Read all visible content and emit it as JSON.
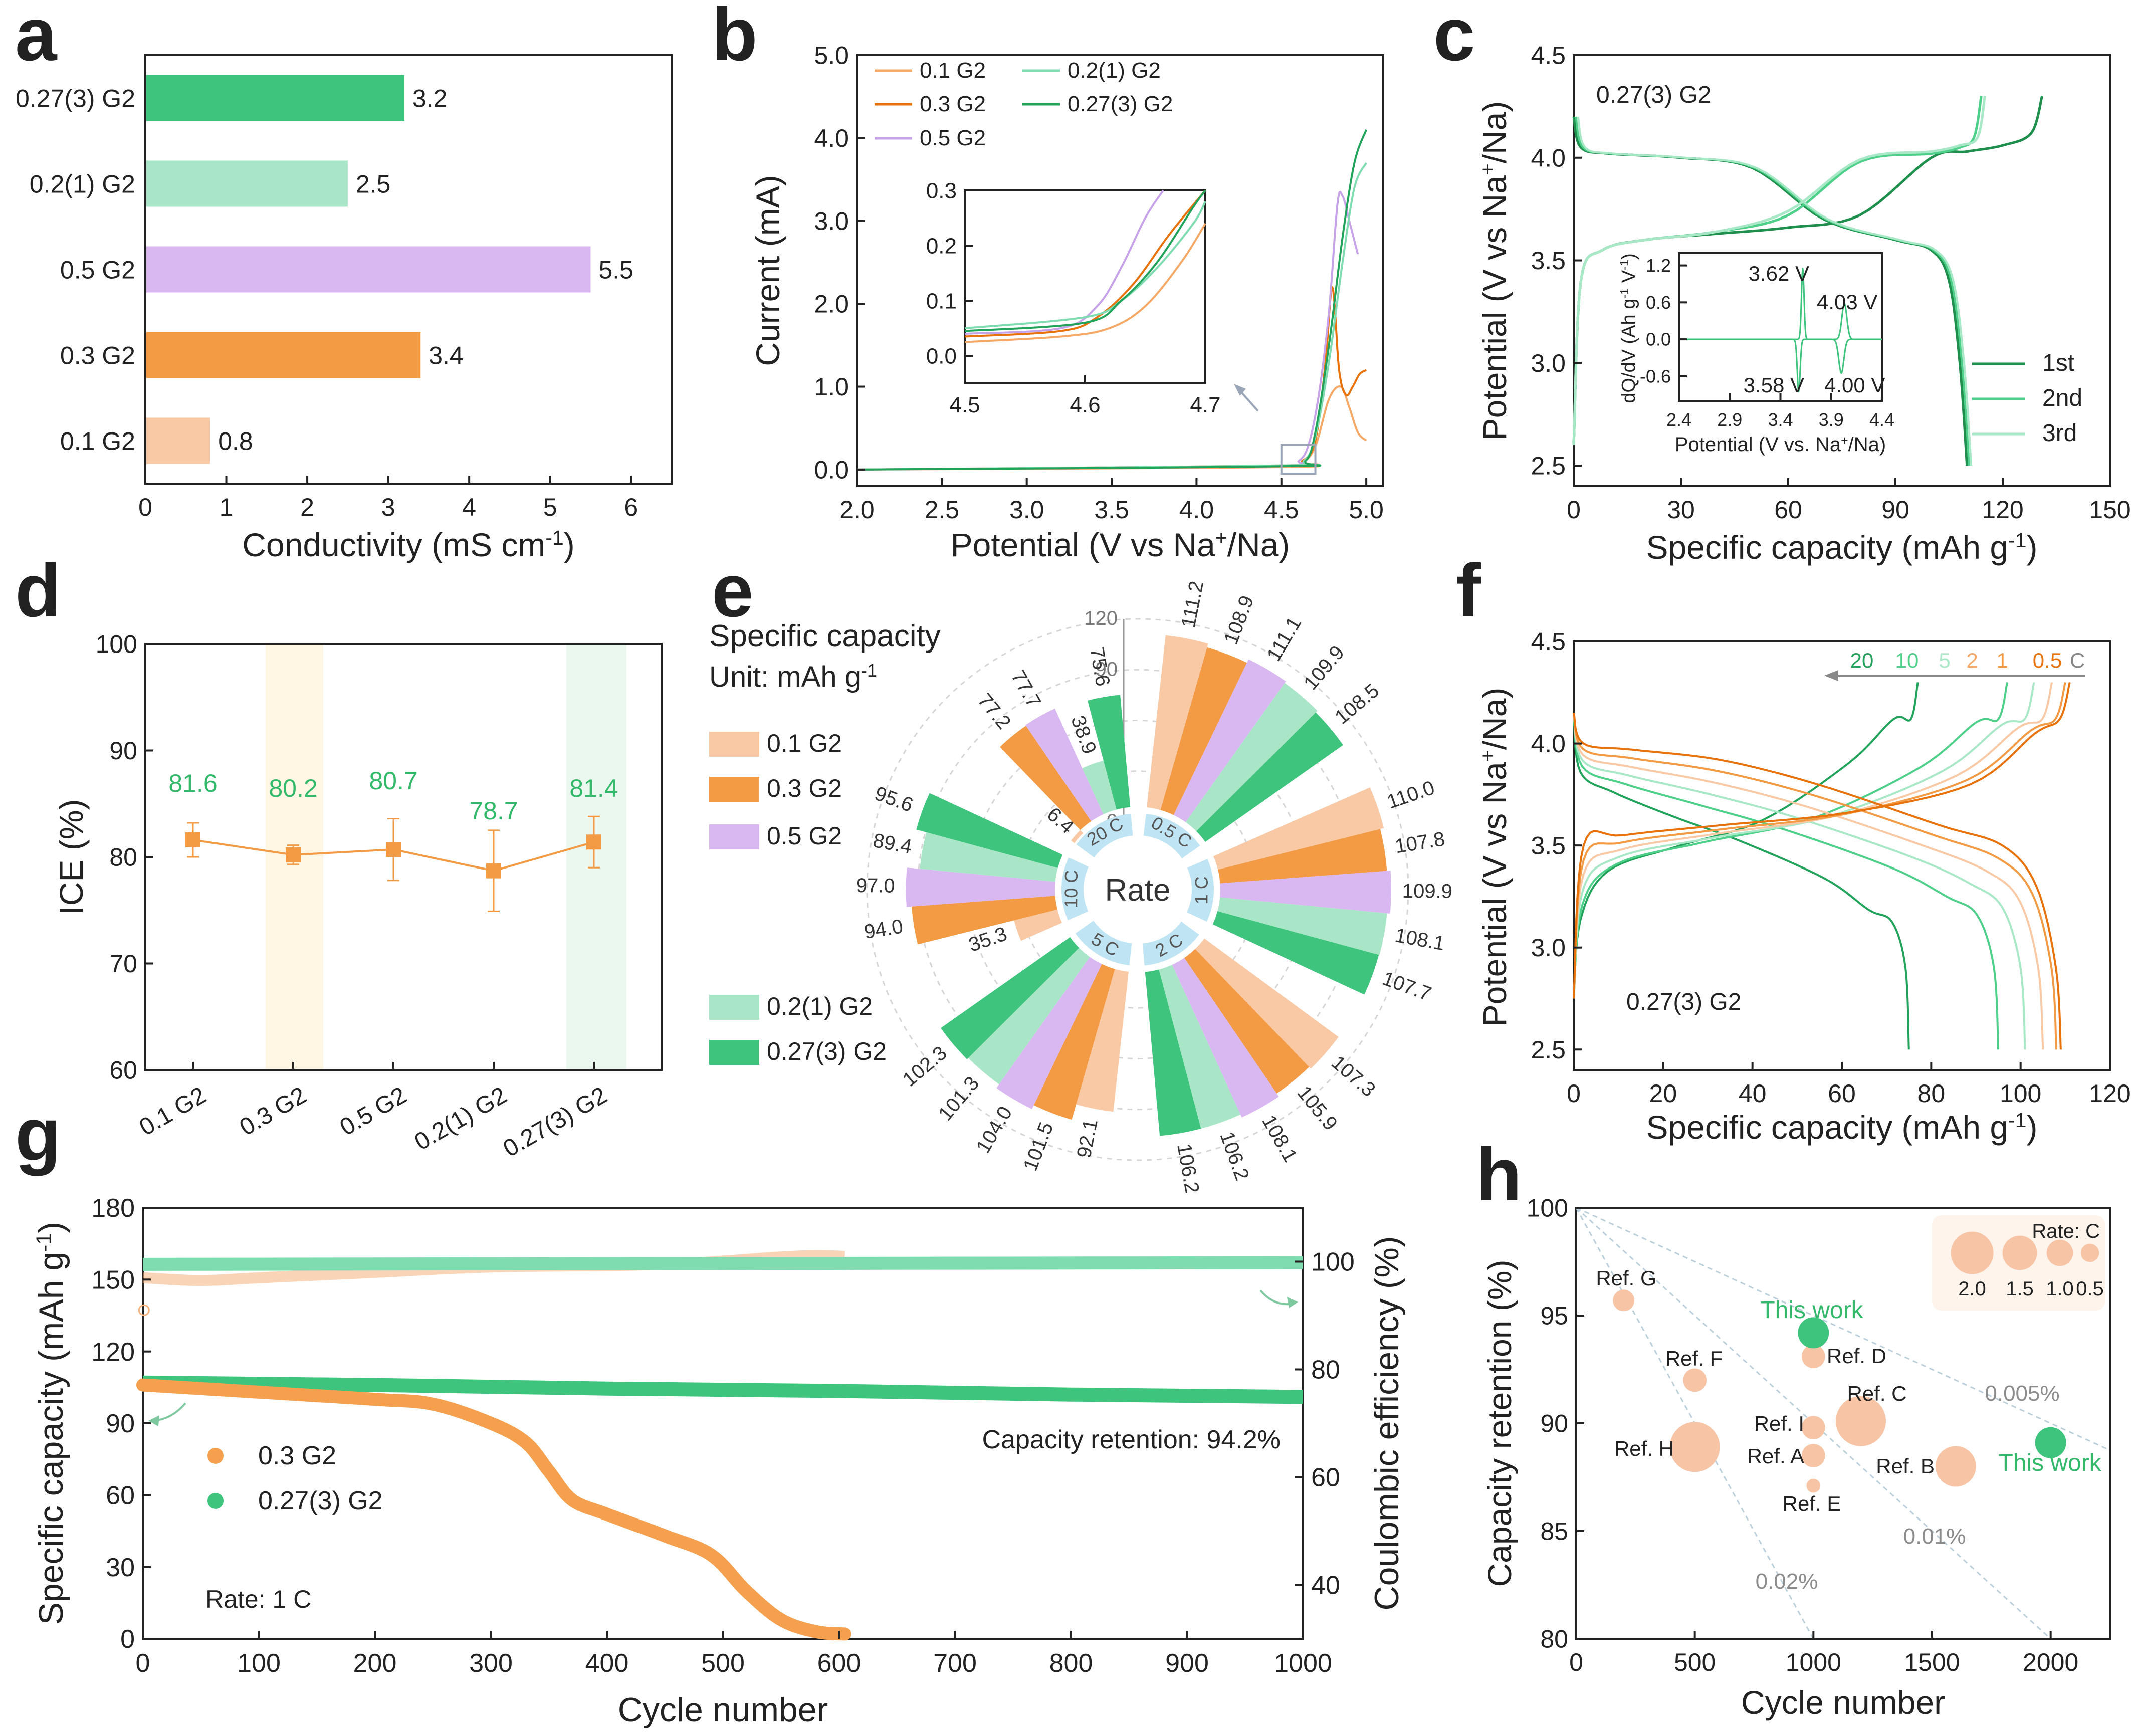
{
  "colors": {
    "c01": "#f9c9a6",
    "c03": "#f39a44",
    "c05": "#d9b8f2",
    "c021": "#a9e6c8",
    "c0273": "#3ec47d",
    "b01": "#f6a867",
    "b03": "#e8720c",
    "b05": "#c6a2e8",
    "b021": "#7fdcb0",
    "b0273": "#22a35b",
    "green_text": "#33b96a",
    "axis": "#222222",
    "light_blue": "#bfe4f3",
    "gray": "#8c8c8c"
  },
  "panels": {
    "a": {
      "letter": "a",
      "chart_data": {
        "type": "bar",
        "orientation": "horizontal",
        "categories": [
          "0.27(3) G2",
          "0.2(1) G2",
          "0.5 G2",
          "0.3 G2",
          "0.1 G2"
        ],
        "values": [
          3.2,
          2.5,
          5.5,
          3.4,
          0.8
        ],
        "value_labels": [
          "3.2",
          "2.5",
          "5.5",
          "3.4",
          "0.8"
        ],
        "xlabel": "Conductivity (mS cm",
        "xlabel_sup": "-1",
        "xlabel_end": ")",
        "xlim": [
          0,
          6.5
        ],
        "xticks": [
          "0",
          "1",
          "2",
          "3",
          "4",
          "5",
          "6"
        ]
      }
    },
    "b": {
      "letter": "b",
      "chart_data": {
        "type": "line",
        "xlabel": "Potential (V vs Na",
        "xlabel_sup": "+",
        "xlabel_end": "/Na)",
        "ylabel": "Current (mA)",
        "xlim": [
          2.0,
          5.1
        ],
        "ylim": [
          -0.2,
          5.0
        ],
        "xticks": [
          "2.0",
          "2.5",
          "3.0",
          "3.5",
          "4.0",
          "4.5",
          "5.0"
        ],
        "yticks": [
          "0.0",
          "1.0",
          "2.0",
          "3.0",
          "4.0",
          "5.0"
        ],
        "legend": [
          "0.1 G2",
          "0.2(1) G2",
          "0.3 G2",
          "0.27(3) G2",
          "0.5 G2"
        ],
        "series": [
          {
            "name": "0.1 G2",
            "x": [
              2.0,
              4.5,
              4.62,
              4.7,
              4.78,
              4.85,
              4.9,
              4.95,
              5.0
            ],
            "y": [
              0.0,
              0.03,
              0.08,
              0.28,
              0.85,
              1.0,
              0.75,
              0.45,
              0.35
            ]
          },
          {
            "name": "0.3 G2",
            "x": [
              2.0,
              4.5,
              4.62,
              4.7,
              4.76,
              4.8,
              4.84,
              4.88,
              4.92,
              4.96,
              5.0
            ],
            "y": [
              0.0,
              0.05,
              0.1,
              0.35,
              1.3,
              2.2,
              1.2,
              0.9,
              1.0,
              1.15,
              1.2
            ]
          },
          {
            "name": "0.5 G2",
            "x": [
              2.0,
              4.5,
              4.6,
              4.66,
              4.72,
              4.78,
              4.83,
              4.86,
              4.9,
              4.95
            ],
            "y": [
              0.0,
              0.04,
              0.1,
              0.3,
              0.9,
              1.9,
              3.2,
              3.3,
              3.0,
              2.6
            ]
          },
          {
            "name": "0.2(1) G2",
            "x": [
              2.0,
              4.5,
              4.63,
              4.7,
              4.78,
              4.86,
              4.93,
              5.0
            ],
            "y": [
              0.0,
              0.05,
              0.1,
              0.4,
              1.3,
              2.5,
              3.4,
              3.7
            ]
          },
          {
            "name": "0.27(3) G2",
            "x": [
              2.0,
              4.5,
              4.64,
              4.7,
              4.78,
              4.86,
              4.93,
              5.0
            ],
            "y": [
              0.0,
              0.04,
              0.1,
              0.45,
              1.5,
              2.8,
              3.7,
              4.1
            ]
          }
        ],
        "inset": {
          "xlim": [
            4.5,
            4.7
          ],
          "ylim": [
            -0.05,
            0.3
          ],
          "xticks": [
            "4.5",
            "4.6",
            "4.7"
          ],
          "yticks": [
            "0.0",
            "0.1",
            "0.2",
            "0.3"
          ],
          "series": [
            {
              "name": "0.1 G2",
              "x": [
                4.5,
                4.58,
                4.62,
                4.65,
                4.68,
                4.7
              ],
              "y": [
                0.025,
                0.035,
                0.05,
                0.09,
                0.17,
                0.24
              ]
            },
            {
              "name": "0.3 G2",
              "x": [
                4.5,
                4.58,
                4.61,
                4.64,
                4.67,
                4.7
              ],
              "y": [
                0.035,
                0.045,
                0.07,
                0.13,
                0.22,
                0.3
              ]
            },
            {
              "name": "0.5 G2",
              "x": [
                4.5,
                4.58,
                4.61,
                4.63,
                4.65,
                4.665
              ],
              "y": [
                0.04,
                0.05,
                0.09,
                0.16,
                0.25,
                0.3
              ]
            },
            {
              "name": "0.2(1) G2",
              "x": [
                4.5,
                4.6,
                4.63,
                4.66,
                4.69,
                4.7
              ],
              "y": [
                0.05,
                0.07,
                0.1,
                0.16,
                0.24,
                0.28
              ]
            },
            {
              "name": "0.27(3) G2",
              "x": [
                4.5,
                4.6,
                4.63,
                4.66,
                4.69,
                4.7
              ],
              "y": [
                0.045,
                0.06,
                0.1,
                0.17,
                0.27,
                0.3
              ]
            }
          ]
        }
      }
    },
    "c": {
      "letter": "c",
      "chart_data": {
        "type": "line",
        "annotation": "0.27(3) G2",
        "xlabel": "Specific capacity (mAh g",
        "xlabel_sup": "-1",
        "xlabel_end": ")",
        "ylabel": "Potential (V vs Na",
        "ylabel_sup": "+",
        "ylabel_end": "/Na)",
        "xlim": [
          0,
          150
        ],
        "ylim": [
          2.4,
          4.5
        ],
        "xticks": [
          "0",
          "30",
          "60",
          "90",
          "120",
          "150"
        ],
        "yticks": [
          "2.5",
          "3.0",
          "3.5",
          "4.0",
          "4.5"
        ],
        "legend": [
          "1st",
          "2nd",
          "3rd"
        ],
        "series": [
          {
            "name": "1st charge",
            "x": [
              0,
              2,
              8,
              20,
              40,
              60,
              80,
              100,
              110,
              120,
              128,
              131
            ],
            "y": [
              2.6,
              3.4,
              3.55,
              3.6,
              3.63,
              3.66,
              3.72,
              4.0,
              4.03,
              4.06,
              4.12,
              4.3
            ]
          },
          {
            "name": "1st discharge",
            "x": [
              0,
              2,
              10,
              30,
              50,
              70,
              90,
              100,
              105,
              108,
              110
            ],
            "y": [
              4.2,
              4.05,
              4.02,
              4.0,
              3.95,
              3.7,
              3.6,
              3.55,
              3.4,
              3.0,
              2.5
            ]
          },
          {
            "name": "2nd",
            "x": [
              0,
              2,
              8,
              20,
              40,
              60,
              80,
              100,
              108,
              112,
              114
            ],
            "y": [
              2.6,
              3.4,
              3.55,
              3.6,
              3.64,
              3.72,
              3.98,
              4.02,
              4.05,
              4.1,
              4.3
            ]
          },
          {
            "name": "3rd",
            "x": [
              0,
              2,
              8,
              20,
              40,
              60,
              80,
              100,
              108,
              113,
              115
            ],
            "y": [
              2.6,
              3.4,
              3.55,
              3.6,
              3.64,
              3.74,
              3.99,
              4.03,
              4.06,
              4.1,
              4.3
            ]
          }
        ],
        "inset": {
          "xlabel": "Potential (V vs. Na",
          "xlabel_sup": "+",
          "xlabel_end": "/Na)",
          "ylabel": "dQ/dV (Ah g",
          "ylabel_sup": "-1",
          "ylabel_mid": " V",
          "ylabel_sup2": "-1",
          "ylabel_end": ")",
          "xticks": [
            "2.4",
            "2.9",
            "3.4",
            "3.9",
            "4.4"
          ],
          "yticks": [
            "1.2",
            "0.6",
            "0.0",
            "-0.6"
          ],
          "xlim": [
            2.4,
            4.4
          ],
          "ylim": [
            -1.0,
            1.4
          ],
          "peak_labels": [
            "3.62 V",
            "4.03 V",
            "3.58 V",
            "4.00 V"
          ]
        }
      }
    },
    "d": {
      "letter": "d",
      "chart_data": {
        "type": "scatter",
        "categories": [
          "0.1 G2",
          "0.3 G2",
          "0.5 G2",
          "0.2(1) G2",
          "0.27(3) G2"
        ],
        "values": [
          81.6,
          80.2,
          80.7,
          78.7,
          81.4
        ],
        "value_labels": [
          "81.6",
          "80.2",
          "80.7",
          "78.7",
          "81.4"
        ],
        "errors": [
          1.6,
          0.9,
          2.9,
          3.8,
          2.4
        ],
        "ylabel": "ICE (%)",
        "ylim": [
          60,
          100
        ],
        "yticks": [
          "60",
          "70",
          "80",
          "90",
          "100"
        ]
      }
    },
    "e": {
      "letter": "e",
      "title_line1": "Specific capacity",
      "title_line2": "Unit: mAh g",
      "title_sup": "-1",
      "center_label": "Rate",
      "chart_data": {
        "type": "bar",
        "polar": true,
        "rates": [
          "0.5 C",
          "1 C",
          "2 C",
          "5 C",
          "10 C",
          "20 C"
        ],
        "series_names": [
          "0.1 G2",
          "0.3 G2",
          "0.5 G2",
          "0.2(1) G2",
          "0.27(3) G2"
        ],
        "values": [
          [
            "111.2",
            "108.9",
            "111.1",
            "109.9",
            "108.5"
          ],
          [
            "110.0",
            "107.8",
            "109.9",
            "108.1",
            "107.7"
          ],
          [
            "107.3",
            "105.9",
            "108.1",
            "106.2",
            "106.2"
          ],
          [
            "92.1",
            "101.5",
            "104.0",
            "101.3",
            "102.3"
          ],
          [
            "35.3",
            "94.0",
            "97.0",
            "89.4",
            "95.6"
          ],
          [
            "6.4",
            "77.2",
            "77.7",
            "38.9",
            "75.6"
          ]
        ],
        "radial_ticks": [
          "0",
          "30",
          "60",
          "90",
          "120"
        ],
        "rmax": 120
      }
    },
    "f": {
      "letter": "f",
      "chart_data": {
        "type": "line",
        "annotation": "0.27(3) G2",
        "xlabel": "Specific capacity (mAh g",
        "xlabel_sup": "-1",
        "xlabel_end": ")",
        "ylabel": "Potential (V vs Na",
        "ylabel_sup": "+",
        "ylabel_end": "/Na)",
        "xlim": [
          0,
          120
        ],
        "ylim": [
          2.4,
          4.5
        ],
        "xticks": [
          "0",
          "20",
          "40",
          "60",
          "80",
          "100",
          "120"
        ],
        "yticks": [
          "2.5",
          "3.0",
          "3.5",
          "4.0",
          "4.5"
        ],
        "rate_labels": [
          "20",
          "10",
          "5",
          "2",
          "1",
          "0.5",
          "C"
        ],
        "caps": [
          {
            "rate": "20",
            "cap": 75
          },
          {
            "rate": "10",
            "cap": 95
          },
          {
            "rate": "5",
            "cap": 101
          },
          {
            "rate": "2",
            "cap": 105
          },
          {
            "rate": "1",
            "cap": 108
          },
          {
            "rate": "0.5",
            "cap": 109
          }
        ]
      }
    },
    "g": {
      "letter": "g",
      "chart_data": {
        "type": "scatter",
        "xlabel": "Cycle number",
        "ylabel": "Specific capacity (mAh g",
        "ylabel_sup": "-1",
        "ylabel_end": ")",
        "y2label": "Coulombic efficiency (%)",
        "xlim": [
          0,
          1000
        ],
        "ylim": [
          0,
          180
        ],
        "y2lim": [
          30,
          110
        ],
        "xticks": [
          "0",
          "100",
          "200",
          "300",
          "400",
          "500",
          "600",
          "700",
          "800",
          "900",
          "1000"
        ],
        "yticks": [
          "0",
          "30",
          "60",
          "90",
          "120",
          "150",
          "180"
        ],
        "y2ticks": [
          "40",
          "60",
          "80",
          "100"
        ],
        "legend": [
          "0.3 G2",
          "0.27(3) G2"
        ],
        "annotation_retention": "Capacity retention: 94.2%",
        "annotation_rate": "Rate: 1 C",
        "series": [
          {
            "name": "0.3 G2 capacity",
            "x": [
              0,
              100,
              200,
              250,
              300,
              330,
              350,
              370,
              400,
              450,
              490,
              520,
              550,
              580,
              605
            ],
            "y": [
              106,
              103,
              100,
              98,
              90,
              82,
              70,
              58,
              52,
              43,
              35,
              20,
              8,
              3,
              2
            ]
          },
          {
            "name": "0.27(3) G2 capacity",
            "x": [
              0,
              200,
              400,
              600,
              800,
              1000
            ],
            "y": [
              107,
              106,
              104.5,
              103.5,
              102,
              101
            ]
          },
          {
            "name": "0.3 G2 CE",
            "x": [
              0,
              50,
              100,
              200,
              300,
              450,
              560,
              605
            ],
            "y": [
              97,
              96.5,
              97,
              98,
              99,
              99.5,
              101,
              101
            ]
          },
          {
            "name": "0.27(3) G2 CE",
            "x": [
              0,
              1000
            ],
            "y": [
              99.5,
              99.8
            ]
          }
        ]
      }
    },
    "h": {
      "letter": "h",
      "chart_data": {
        "type": "scatter",
        "bubble": true,
        "xlabel": "Cycle number",
        "ylabel": "Capacity retention (%)",
        "xlim": [
          0,
          2250
        ],
        "ylim": [
          80,
          100
        ],
        "xticks": [
          "0",
          "500",
          "1000",
          "1500",
          "2000"
        ],
        "yticks": [
          "80",
          "85",
          "90",
          "95",
          "100"
        ],
        "points": [
          {
            "label": "Ref. G",
            "x": 200,
            "y": 95.7,
            "rate": 0.5
          },
          {
            "label": "Ref. F",
            "x": 500,
            "y": 92.0,
            "rate": 0.6
          },
          {
            "label": "Ref. H",
            "x": 500,
            "y": 88.9,
            "rate": 2.0
          },
          {
            "label": "Ref. D",
            "x": 1000,
            "y": 93.1,
            "rate": 0.6
          },
          {
            "label": "Ref. I",
            "x": 1000,
            "y": 89.8,
            "rate": 0.6
          },
          {
            "label": "Ref. A",
            "x": 1000,
            "y": 88.5,
            "rate": 0.6
          },
          {
            "label": "Ref. E",
            "x": 1000,
            "y": 87.1,
            "rate": 0.1
          },
          {
            "label": "Ref. C",
            "x": 1200,
            "y": 90.1,
            "rate": 2.0
          },
          {
            "label": "Ref. B",
            "x": 1600,
            "y": 88.0,
            "rate": 1.5
          },
          {
            "label": "This work",
            "x": 1000,
            "y": 94.2,
            "rate": 1.0,
            "own": true
          },
          {
            "label": "This work",
            "x": 2000,
            "y": 89.1,
            "rate": 1.0,
            "own": true
          }
        ],
        "decay_lines": [
          "0.02%",
          "0.01%",
          "0.005%"
        ],
        "size_legend_title": "Rate: C",
        "size_legend": [
          "2.0",
          "1.5",
          "1.0",
          "0.5"
        ]
      }
    }
  }
}
